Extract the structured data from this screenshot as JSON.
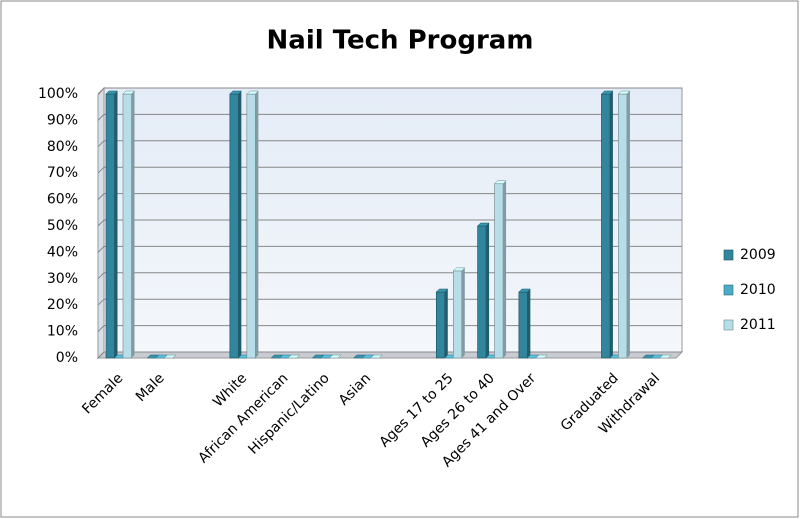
{
  "chart_data": {
    "type": "bar",
    "title": "Nail Tech Program",
    "categories": [
      "Female",
      "Male",
      null,
      "White",
      "African American",
      "Hispanic/Latino",
      "Asian",
      null,
      "Ages 17 to 25",
      "Ages 26 to 40",
      "Ages 41 and Over",
      null,
      "Graduated",
      "Withdrawal"
    ],
    "series": [
      {
        "name": "2009",
        "color": "#31859c",
        "values": [
          100,
          0,
          null,
          100,
          0,
          0,
          0,
          null,
          25,
          50,
          25,
          null,
          100,
          0
        ]
      },
      {
        "name": "2010",
        "color": "#4bacc6",
        "values": [
          0,
          0,
          null,
          0,
          0,
          0,
          0,
          null,
          0,
          0,
          0,
          null,
          0,
          0
        ]
      },
      {
        "name": "2011",
        "color": "#b7dee8",
        "values": [
          100,
          0,
          null,
          100,
          0,
          0,
          0,
          null,
          33,
          66,
          0,
          null,
          100,
          0
        ]
      }
    ],
    "ylim": [
      0,
      100
    ],
    "yticks": [
      {
        "value": 0,
        "label": "0%"
      },
      {
        "value": 10,
        "label": "10%"
      },
      {
        "value": 20,
        "label": "20%"
      },
      {
        "value": 30,
        "label": "30%"
      },
      {
        "value": 40,
        "label": "40%"
      },
      {
        "value": 50,
        "label": "50%"
      },
      {
        "value": 60,
        "label": "60%"
      },
      {
        "value": 70,
        "label": "70%"
      },
      {
        "value": 80,
        "label": "80%"
      },
      {
        "value": 90,
        "label": "90%"
      },
      {
        "value": 100,
        "label": "100%"
      }
    ],
    "grid": true,
    "legend": "right"
  }
}
